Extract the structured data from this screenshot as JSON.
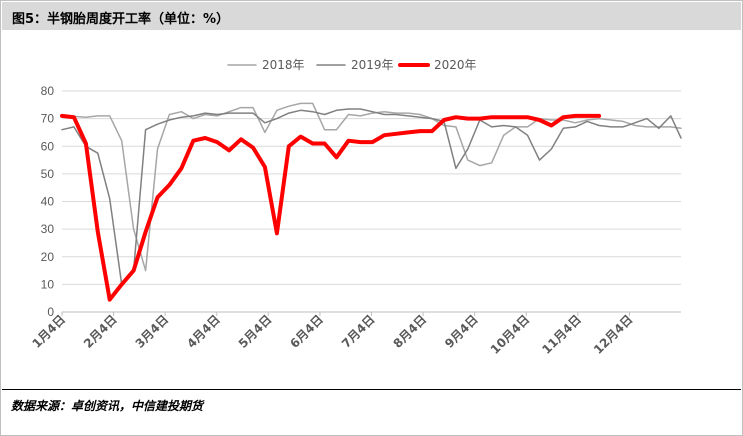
{
  "header": {
    "title": "图5：半钢胎周度开工率（单位：%）"
  },
  "footer": {
    "source": "数据来源：卓创资讯，中信建投期货"
  },
  "chart_data": {
    "type": "line",
    "title": "图5：半钢胎周度开工率（单位：%）",
    "xlabel": "",
    "ylabel": "",
    "ylim": [
      0,
      80
    ],
    "yticks": [
      0,
      10,
      20,
      30,
      40,
      50,
      60,
      70,
      80
    ],
    "x_tick_labels": [
      "1月4日",
      "2月4日",
      "3月4日",
      "4月4日",
      "5月4日",
      "6月4日",
      "7月4日",
      "8月4日",
      "9月4日",
      "10月4日",
      "11月4日",
      "12月4日"
    ],
    "x_domain": [
      0,
      363
    ],
    "grid": true,
    "legend_position": "top-center",
    "series": [
      {
        "name": "2018年",
        "color": "#a6a6a6",
        "line_width": 1.5,
        "x": [
          0,
          7,
          14,
          21,
          28,
          35,
          42,
          49,
          56,
          63,
          70,
          77,
          84,
          91,
          98,
          105,
          112,
          119,
          126,
          133,
          140,
          147,
          154,
          161,
          168,
          175,
          182,
          189,
          196,
          203,
          210,
          217,
          224,
          231,
          238,
          245,
          252,
          259,
          266,
          273,
          280,
          287,
          294,
          301,
          308,
          315,
          322,
          329,
          336,
          343,
          350,
          357,
          363
        ],
        "y": [
          70.5,
          70.8,
          70.5,
          71,
          71,
          62,
          30,
          15,
          59,
          71.5,
          72.5,
          70,
          71.5,
          71,
          72.5,
          74,
          74,
          65,
          73,
          74.5,
          75.5,
          75.5,
          66,
          66,
          71.5,
          71,
          72,
          72.5,
          72,
          72,
          71.5,
          70,
          67.5,
          67,
          55,
          53,
          54,
          64,
          67,
          67,
          70,
          69.5,
          69.5,
          68.5,
          69.5,
          70,
          69.5,
          69,
          67.5,
          67,
          67,
          67,
          66.5
        ]
      },
      {
        "name": "2019年",
        "color": "#808080",
        "line_width": 1.5,
        "x": [
          0,
          7,
          14,
          21,
          28,
          35,
          42,
          49,
          56,
          63,
          70,
          77,
          84,
          91,
          98,
          105,
          112,
          119,
          126,
          133,
          140,
          147,
          154,
          161,
          168,
          175,
          182,
          189,
          196,
          203,
          210,
          217,
          224,
          231,
          238,
          245,
          252,
          259,
          266,
          273,
          280,
          287,
          294,
          301,
          308,
          315,
          322,
          329,
          336,
          343,
          350,
          357,
          363
        ],
        "y": [
          66,
          67,
          60,
          57.5,
          41,
          10,
          15,
          66,
          68,
          69.5,
          70.5,
          71,
          72,
          71.5,
          72,
          72,
          72,
          68.5,
          70,
          72,
          73,
          72.5,
          71.5,
          73,
          73.5,
          73.5,
          72.5,
          71.5,
          71.5,
          71,
          70.5,
          70,
          69,
          52,
          59,
          69.5,
          67,
          67.5,
          67,
          64,
          55,
          59,
          66.5,
          67,
          69,
          67.5,
          67,
          67,
          68.5,
          70,
          66.5,
          71,
          63
        ]
      },
      {
        "name": "2020年",
        "color": "#ff0000",
        "line_width": 4,
        "x": [
          0,
          7,
          14,
          21,
          28,
          35,
          42,
          49,
          56,
          63,
          70,
          77,
          84,
          91,
          98,
          105,
          112,
          119,
          126,
          133,
          140,
          147,
          154,
          161,
          168,
          175,
          182,
          189,
          196,
          203,
          210,
          217,
          224,
          231,
          238,
          245,
          252,
          259,
          266,
          273,
          280,
          287,
          294,
          301,
          308,
          315
        ],
        "y": [
          71,
          70.5,
          61,
          29,
          4.5,
          10,
          15,
          29,
          41.5,
          46,
          52,
          62,
          63,
          61.5,
          58.5,
          62.5,
          59.5,
          52.5,
          28.5,
          60,
          63.5,
          61,
          61,
          56,
          62,
          61.5,
          61.5,
          64,
          64.5,
          65,
          65.5,
          65.5,
          69.5,
          70.5,
          70,
          70,
          70.5,
          70.5,
          70.5,
          70.5,
          69.5,
          67.5,
          70.5,
          71,
          71,
          71
        ]
      }
    ]
  }
}
